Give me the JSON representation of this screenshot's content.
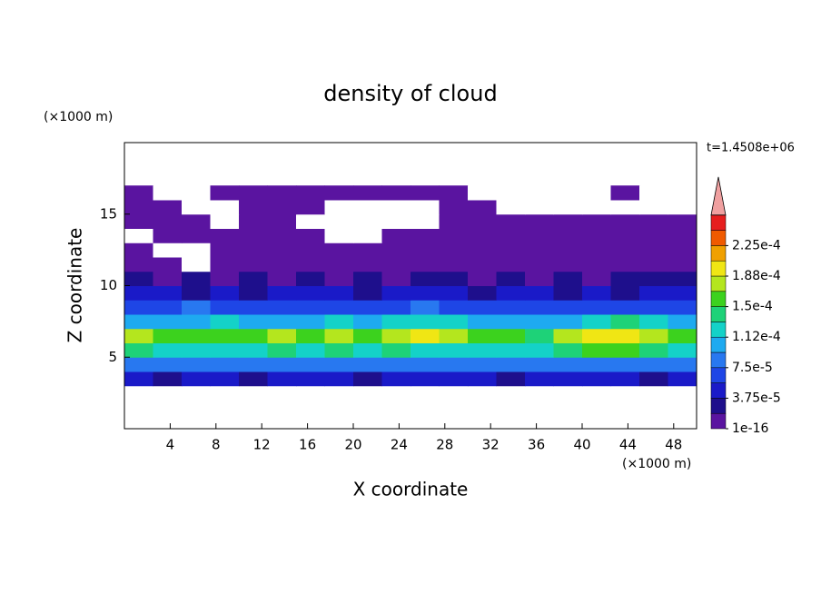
{
  "chart_data": {
    "type": "contour",
    "title": "density of cloud",
    "x_label": "X coordinate",
    "y_label": "Z coordinate",
    "x_unit": "(×1000 m)",
    "y_unit": "(×1000 m)",
    "time_label": "t=1.4508e+06",
    "xlim": [
      0,
      50
    ],
    "ylim": [
      0,
      20
    ],
    "xticks": [
      4,
      8,
      12,
      16,
      20,
      24,
      28,
      32,
      36,
      40,
      44,
      48
    ],
    "yticks": [
      5,
      10,
      15
    ],
    "x": [
      1.25,
      3.75,
      6.25,
      8.75,
      11.25,
      13.75,
      16.25,
      18.75,
      21.25,
      23.75,
      26.25,
      28.75,
      31.25,
      33.75,
      36.25,
      38.75,
      41.25,
      43.75,
      46.25,
      48.75
    ],
    "z": [
      3.5,
      4.5,
      5.5,
      6.5,
      7.5,
      8.5,
      9.5,
      10.5,
      11.5,
      12.5,
      13.5,
      14.5,
      15.5,
      16.5
    ],
    "values": [
      [
        4e-05,
        2.5e-05,
        3.8e-05,
        4.5e-05,
        2.8e-05,
        4.3e-05,
        4e-05,
        3.9e-05,
        2.6e-05,
        4e-05,
        4.1e-05,
        3.8e-05,
        4.2e-05,
        2.7e-05,
        4.5e-05,
        4e-05,
        3.9e-05,
        4.3e-05,
        2.9e-05,
        4.1e-05
      ],
      [
        8.2e-05,
        7.8e-05,
        8.5e-05,
        9e-05,
        7.6e-05,
        8.8e-05,
        8e-05,
        8.3e-05,
        7.9e-05,
        8.6e-05,
        8.1e-05,
        7.7e-05,
        8.4e-05,
        8.9e-05,
        8e-05,
        7.8e-05,
        8.2e-05,
        8.7e-05,
        8e-05,
        8.3e-05
      ],
      [
        0.000135,
        0.00012,
        0.000128,
        0.000115,
        0.00013,
        0.00014,
        0.000125,
        0.000133,
        0.00012,
        0.000138,
        0.00013,
        0.000118,
        0.000122,
        0.000126,
        0.00012,
        0.000145,
        0.000155,
        0.00015,
        0.00014,
        0.00013
      ],
      [
        0.00017,
        0.000155,
        0.000162,
        0.00015,
        0.000168,
        0.000175,
        0.00016,
        0.000172,
        0.000158,
        0.00018,
        0.00019,
        0.000185,
        0.00016,
        0.000152,
        0.00014,
        0.00017,
        0.000195,
        0.000205,
        0.000185,
        0.000165
      ],
      [
        0.000105,
        0.0001,
        0.00011,
        0.000115,
        0.0001,
        0.000112,
        0.000108,
        0.00012,
        0.000105,
        0.000118,
        0.000125,
        0.000122,
        0.00011,
        0.0001,
        9.5e-05,
        0.0001,
        0.00013,
        0.000135,
        0.000115,
        0.000105
      ],
      [
        7e-05,
        6.5e-05,
        7.5e-05,
        6.8e-05,
        7.2e-05,
        6.2e-05,
        7e-05,
        6.6e-05,
        7.4e-05,
        6.9e-05,
        7.8e-05,
        7.1e-05,
        6.4e-05,
        6e-05,
        5.8e-05,
        6.2e-05,
        7e-05,
        6.5e-05,
        6.8e-05,
        7.3e-05
      ],
      [
        4.5e-05,
        4e-05,
        3.6e-05,
        4.2e-05,
        3.2e-05,
        4e-05,
        3.8e-05,
        4.4e-05,
        3.5e-05,
        4.6e-05,
        4e-05,
        3.9e-05,
        3.4e-05,
        3.8e-05,
        4.2e-05,
        3.6e-05,
        4e-05,
        3.3e-05,
        4.1e-05,
        4.8e-05
      ],
      [
        2.4e-05,
        1.6e-05,
        2e-05,
        1.4e-05,
        2.2e-05,
        1.8e-05,
        2.5e-05,
        1.5e-05,
        2.1e-05,
        1.7e-05,
        2.3e-05,
        1.9e-05,
        1.6e-05,
        2.4e-05,
        1.8e-05,
        2e-05,
        1.5e-05,
        2.2e-05,
        1.9e-05,
        2.6e-05
      ],
      [
        9e-06,
        1.2e-05,
        0,
        1e-05,
        1.5e-05,
        8e-06,
        1.1e-05,
        1.3e-05,
        9e-06,
        1.2e-05,
        1e-05,
        1.4e-05,
        8e-06,
        1.1e-05,
        1.3e-05,
        1e-05,
        9e-06,
        1.2e-05,
        1e-05,
        1.1e-05
      ],
      [
        6e-06,
        0,
        0,
        7e-06,
        8e-06,
        6e-06,
        9e-06,
        7e-06,
        6e-06,
        8e-06,
        7e-06,
        9e-06,
        6e-06,
        8e-06,
        7e-06,
        6e-06,
        8e-06,
        9e-06,
        7e-06,
        8e-06
      ],
      [
        0,
        5e-06,
        6e-06,
        7e-06,
        5e-06,
        6e-06,
        5e-06,
        0,
        0,
        6e-06,
        5e-06,
        7e-06,
        6e-06,
        5e-06,
        6e-06,
        7e-06,
        5e-06,
        6e-06,
        5e-06,
        6e-06
      ],
      [
        5e-06,
        4e-06,
        5e-06,
        0,
        4e-06,
        5e-06,
        0,
        0,
        0,
        0,
        0,
        4e-06,
        5e-06,
        4e-06,
        5e-06,
        4e-06,
        5e-06,
        4e-06,
        5e-06,
        4e-06
      ],
      [
        4e-06,
        3e-06,
        0,
        0,
        4e-06,
        3e-06,
        4e-06,
        0,
        0,
        0,
        0,
        3e-06,
        4e-06,
        0,
        0,
        0,
        0,
        0,
        0,
        0
      ],
      [
        3e-06,
        0,
        0,
        3e-06,
        3e-06,
        4e-06,
        3e-06,
        4e-06,
        3e-06,
        4e-06,
        3e-06,
        3e-06,
        0,
        0,
        0,
        0,
        0,
        3e-06,
        0,
        0
      ]
    ],
    "levels": [
      1e-16,
      1.875e-05,
      3.75e-05,
      5.625e-05,
      7.5e-05,
      9.375e-05,
      0.0001125,
      0.00013125,
      0.00015,
      0.00016875,
      0.0001875,
      0.00020625,
      0.000225,
      0.00024375
    ],
    "level_labels": [
      "1e-16",
      null,
      "3.75e-5",
      null,
      "7.5e-5",
      null,
      "1.12e-4",
      null,
      "1.5e-4",
      null,
      "1.88e-4",
      null,
      "2.25e-4",
      null
    ],
    "colors": [
      "#5a14a0",
      "#1e0f8c",
      "#1a1ac8",
      "#1e46e6",
      "#2878f0",
      "#1eaaf0",
      "#14d2c8",
      "#1ed278",
      "#3cd21e",
      "#b4e61e",
      "#f0e614",
      "#f0a000",
      "#f05a00",
      "#e61e1e"
    ],
    "extend_color": "#f0a0a0"
  }
}
